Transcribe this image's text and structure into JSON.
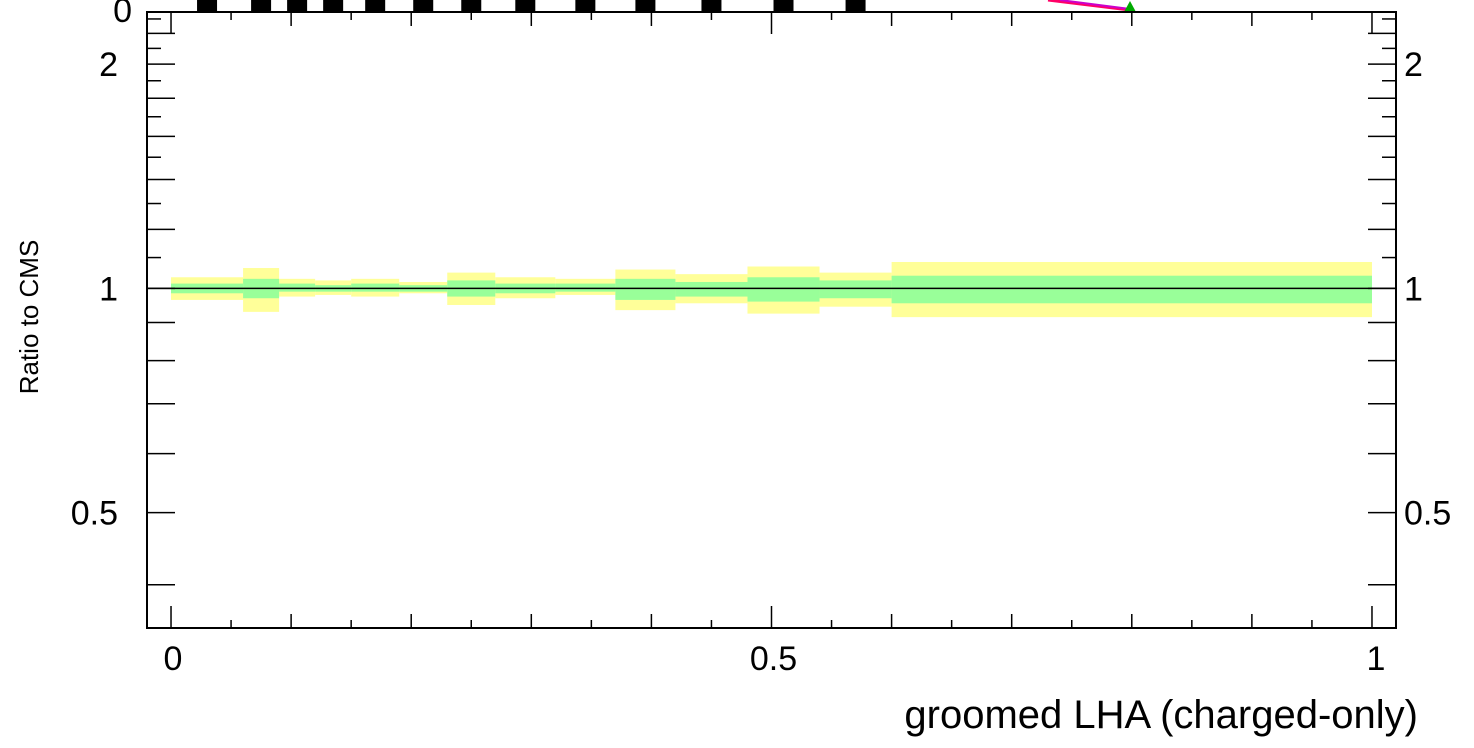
{
  "chart_data": {
    "type": "area",
    "title": "",
    "xlabel": "groomed LHA (charged-only)",
    "ylabel": "Ratio to CMS",
    "xlim": [
      -0.02,
      1.02
    ],
    "ylim": [
      0.35,
      2.35
    ],
    "ylog": true,
    "grid": false,
    "x_ticks": [
      {
        "value": 0,
        "label": "0"
      },
      {
        "value": 0.5,
        "label": "0.5"
      },
      {
        "value": 1,
        "label": "1"
      }
    ],
    "y_ticks": [
      {
        "value": 0.5,
        "label": "0.5"
      },
      {
        "value": 1,
        "label": "1"
      },
      {
        "value": 2,
        "label": "2"
      }
    ],
    "reference_line": 1,
    "upper_panel_tick_label": "0",
    "bins": [
      0,
      0.06,
      0.09,
      0.12,
      0.15,
      0.19,
      0.23,
      0.27,
      0.32,
      0.37,
      0.42,
      0.48,
      0.54,
      0.6,
      1.0
    ],
    "series": [
      {
        "name": "",
        "role": "outer-uncertainty",
        "color": "#ffff99",
        "lower": [
          0.965,
          0.93,
          0.975,
          0.98,
          0.975,
          0.985,
          0.95,
          0.97,
          0.98,
          0.935,
          0.955,
          0.925,
          0.945,
          0.915
        ],
        "upper": [
          1.035,
          1.065,
          1.03,
          1.025,
          1.03,
          1.02,
          1.05,
          1.035,
          1.03,
          1.06,
          1.045,
          1.07,
          1.05,
          1.085
        ]
      },
      {
        "name": "",
        "role": "inner-uncertainty",
        "color": "#99ff99",
        "lower": [
          0.985,
          0.97,
          0.99,
          0.99,
          0.99,
          0.99,
          0.975,
          0.985,
          0.99,
          0.965,
          0.975,
          0.96,
          0.97,
          0.955
        ],
        "upper": [
          1.015,
          1.03,
          1.015,
          1.01,
          1.015,
          1.01,
          1.025,
          1.015,
          1.015,
          1.03,
          1.02,
          1.035,
          1.025,
          1.04
        ]
      }
    ],
    "upper_panel_markers_x": [
      0.03,
      0.075,
      0.105,
      0.135,
      0.17,
      0.21,
      0.25,
      0.295,
      0.345,
      0.395,
      0.45,
      0.51,
      0.57
    ]
  }
}
